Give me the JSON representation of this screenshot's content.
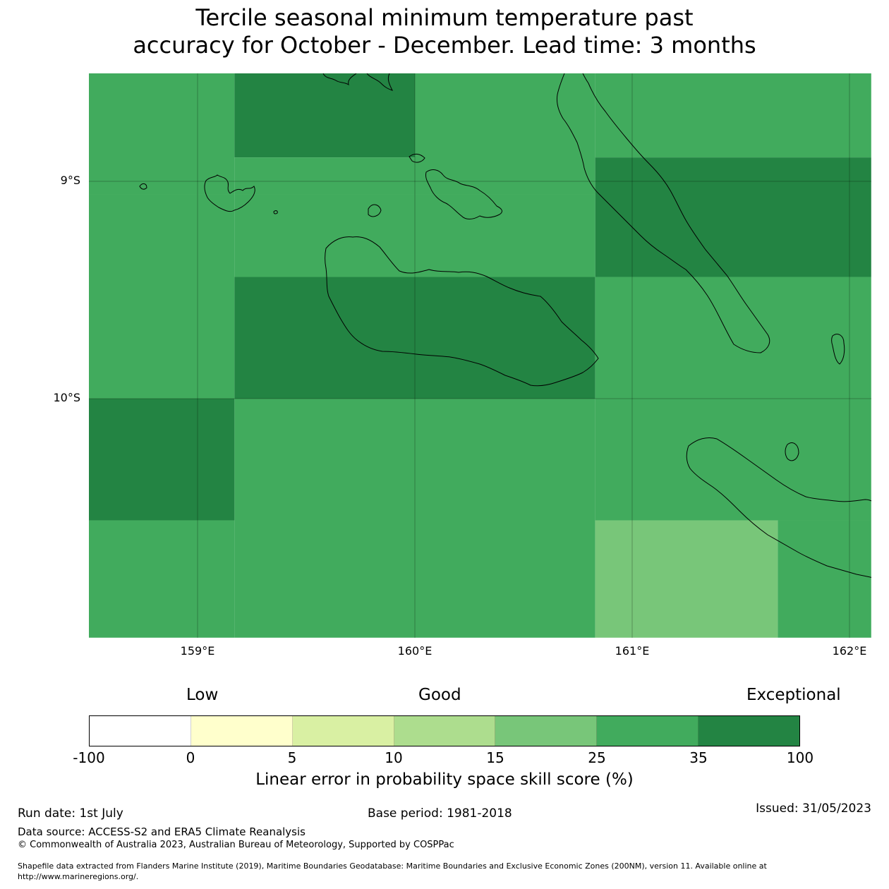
{
  "title": {
    "line1": "Tercile seasonal minimum temperature past",
    "line2": "accuracy for October - December. Lead time: 3 months"
  },
  "map": {
    "lat_labels": [
      "9°S",
      "10°S"
    ],
    "lon_labels": [
      "159°E",
      "160°E",
      "161°E",
      "162°E"
    ],
    "cells": [
      {
        "lon": [
          158.5,
          159.17
        ],
        "lat": [
          -8.5,
          -9.06
        ],
        "category": "25-35"
      },
      {
        "lon": [
          159.17,
          160.0
        ],
        "lat": [
          -8.5,
          -8.89
        ],
        "category": "35-100"
      },
      {
        "lon": [
          159.17,
          160.0
        ],
        "lat": [
          -8.89,
          -9.06
        ],
        "category": "25-35"
      },
      {
        "lon": [
          160.0,
          160.83
        ],
        "lat": [
          -8.5,
          -9.06
        ],
        "category": "25-35"
      },
      {
        "lon": [
          160.83,
          162.1
        ],
        "lat": [
          -8.5,
          -8.89
        ],
        "category": "25-35"
      },
      {
        "lon": [
          160.83,
          162.1
        ],
        "lat": [
          -8.89,
          -9.44
        ],
        "category": "35-100"
      },
      {
        "lon": [
          158.5,
          159.17
        ],
        "lat": [
          -9.06,
          -10.0
        ],
        "category": "25-35"
      },
      {
        "lon": [
          159.17,
          160.83
        ],
        "lat": [
          -9.06,
          -9.44
        ],
        "category": "25-35"
      },
      {
        "lon": [
          159.17,
          160.83
        ],
        "lat": [
          -9.44,
          -10.0
        ],
        "category": "35-100"
      },
      {
        "lon": [
          160.83,
          162.1
        ],
        "lat": [
          -9.44,
          -10.0
        ],
        "category": "25-35"
      },
      {
        "lon": [
          158.5,
          159.17
        ],
        "lat": [
          -10.0,
          -10.56
        ],
        "category": "35-100"
      },
      {
        "lon": [
          159.17,
          160.83
        ],
        "lat": [
          -10.0,
          -11.1
        ],
        "category": "25-35"
      },
      {
        "lon": [
          158.5,
          159.17
        ],
        "lat": [
          -10.56,
          -11.1
        ],
        "category": "25-35"
      },
      {
        "lon": [
          160.83,
          162.1
        ],
        "lat": [
          -10.0,
          -10.56
        ],
        "category": "25-35"
      },
      {
        "lon": [
          160.83,
          161.67
        ],
        "lat": [
          -10.56,
          -11.1
        ],
        "category": "15-25"
      },
      {
        "lon": [
          161.67,
          162.1
        ],
        "lat": [
          -10.56,
          -11.1
        ],
        "category": "25-35"
      }
    ]
  },
  "legend": {
    "categories": [
      "Low",
      "Good",
      "Exceptional"
    ],
    "colors": [
      "#ffffff",
      "#ffffcc",
      "#d9f0a3",
      "#addd8e",
      "#78c679",
      "#41ab5d",
      "#238443"
    ],
    "ticks": [
      "-100",
      "0",
      "5",
      "10",
      "15",
      "25",
      "35",
      "100"
    ],
    "label": "Linear error in probability space skill score (%)"
  },
  "footer": {
    "run_date": "Run date: 1st July",
    "base_period": "Base period: 1981-2018",
    "issued": "Issued: 31/05/2023",
    "data_source": "Data source: ACCESS-S2 and ERA5 Climate Reanalysis",
    "copyright": "© Commonwealth of Australia 2023, Australian Bureau of Meteorology, Supported by COSPPac",
    "shapefile_line1": "Shapefile data extracted from Flanders Marine Institute (2019), Maritime Boundaries Geodatabase: Maritime Boundaries and Exclusive Economic Zones (200NM), version 11. Available online at",
    "shapefile_line2": "http://www.marineregions.org/."
  }
}
